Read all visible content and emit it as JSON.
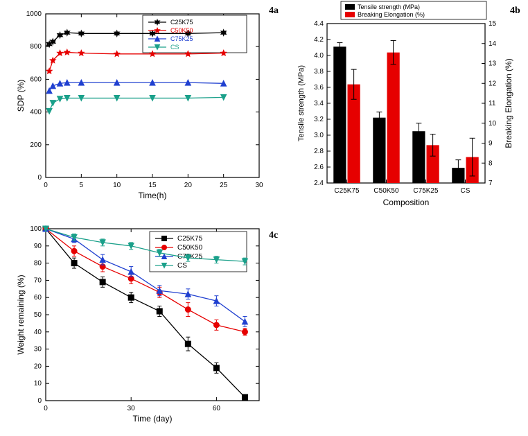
{
  "panel_a": {
    "label": "4a",
    "type": "line",
    "xlabel": "Time(h)",
    "ylabel": "SDP (%)",
    "xlim": [
      0,
      30
    ],
    "ylim": [
      0,
      1000
    ],
    "xticks": [
      0,
      5,
      10,
      15,
      20,
      25,
      30
    ],
    "yticks": [
      0,
      200,
      400,
      600,
      800,
      1000
    ],
    "axis_font": 11,
    "label_font": 12,
    "series": [
      {
        "name": "C25K75",
        "color": "#000000",
        "marker": "star",
        "x": [
          0.5,
          1,
          2,
          3,
          5,
          10,
          15,
          20,
          25
        ],
        "y": [
          815,
          830,
          870,
          885,
          880,
          880,
          880,
          880,
          885
        ]
      },
      {
        "name": "C50K50",
        "color": "#e60000",
        "marker": "fivestar",
        "x": [
          0.5,
          1,
          2,
          3,
          5,
          10,
          15,
          20,
          25
        ],
        "y": [
          650,
          715,
          760,
          765,
          760,
          755,
          755,
          755,
          760
        ]
      },
      {
        "name": "C75K25",
        "color": "#2040d0",
        "marker": "tri-up",
        "x": [
          0.5,
          1,
          2,
          3,
          5,
          10,
          15,
          20,
          25
        ],
        "y": [
          530,
          560,
          575,
          580,
          580,
          580,
          580,
          580,
          575
        ]
      },
      {
        "name": "CS",
        "color": "#1aa08a",
        "marker": "tri-down",
        "x": [
          0.5,
          1,
          2,
          3,
          5,
          10,
          15,
          20,
          25
        ],
        "y": [
          405,
          455,
          480,
          485,
          485,
          485,
          485,
          485,
          490
        ]
      }
    ]
  },
  "panel_b": {
    "label": "4b",
    "type": "bar",
    "xlabel": "Composition",
    "y1label": "Tensile strength  (MPa)",
    "y2label": "Breaking Elongation (%)",
    "categories": [
      "C25K75",
      "C50K50",
      "C75K25",
      "CS"
    ],
    "bar_colors": {
      "tensile": "#000000",
      "elong": "#e60000"
    },
    "y1lim": [
      2.4,
      4.4
    ],
    "y1ticks": [
      2.4,
      2.6,
      2.8,
      3.0,
      3.2,
      3.4,
      3.6,
      3.8,
      4.0,
      4.2,
      4.4
    ],
    "y2lim": [
      7,
      15
    ],
    "y2ticks": [
      7,
      8,
      9,
      10,
      11,
      12,
      13,
      14,
      15
    ],
    "tensile": [
      4.11,
      3.22,
      3.05,
      2.59
    ],
    "tensile_err": [
      0.05,
      0.07,
      0.1,
      0.1
    ],
    "elong": [
      11.95,
      13.55,
      8.9,
      8.3
    ],
    "elong_err": [
      0.75,
      0.6,
      0.55,
      0.95
    ],
    "legend": [
      "Tensile strength (MPa)",
      "Breaking Elongation (%)"
    ]
  },
  "panel_c": {
    "label": "4c",
    "type": "line",
    "xlabel": "Time (day)",
    "ylabel": "Weight remaining (%)",
    "xlim": [
      0,
      75
    ],
    "ylim": [
      0,
      100
    ],
    "xticks": [
      0,
      30,
      60
    ],
    "yticks": [
      0,
      10,
      20,
      30,
      40,
      50,
      60,
      70,
      80,
      90,
      100
    ],
    "series": [
      {
        "name": "C25K75",
        "color": "#000000",
        "marker": "square",
        "x": [
          0,
          10,
          20,
          30,
          40,
          50,
          60,
          70
        ],
        "y": [
          100,
          80,
          69,
          60,
          52,
          33,
          19,
          2
        ],
        "err": [
          0,
          3,
          3,
          3,
          3,
          4,
          3,
          1
        ]
      },
      {
        "name": "C50K50",
        "color": "#e60000",
        "marker": "circle",
        "x": [
          0,
          10,
          20,
          30,
          40,
          50,
          60,
          70
        ],
        "y": [
          100,
          87,
          78,
          71,
          63,
          53,
          44,
          40
        ],
        "err": [
          0,
          3,
          3,
          3,
          3,
          4,
          3,
          2
        ]
      },
      {
        "name": "C75K25",
        "color": "#2040d0",
        "marker": "tri-up",
        "x": [
          0,
          10,
          20,
          30,
          40,
          50,
          60,
          70
        ],
        "y": [
          100,
          94,
          82,
          75,
          64,
          62,
          58,
          46
        ],
        "err": [
          0,
          2,
          3,
          3,
          3,
          3,
          3,
          3
        ]
      },
      {
        "name": "CS",
        "color": "#1aa08a",
        "marker": "tri-down",
        "x": [
          0,
          10,
          20,
          30,
          40,
          50,
          60,
          70
        ],
        "y": [
          100,
          95,
          92,
          90,
          86,
          83,
          82,
          81
        ],
        "err": [
          0,
          2,
          2,
          2,
          2,
          2,
          2,
          2
        ]
      }
    ]
  }
}
